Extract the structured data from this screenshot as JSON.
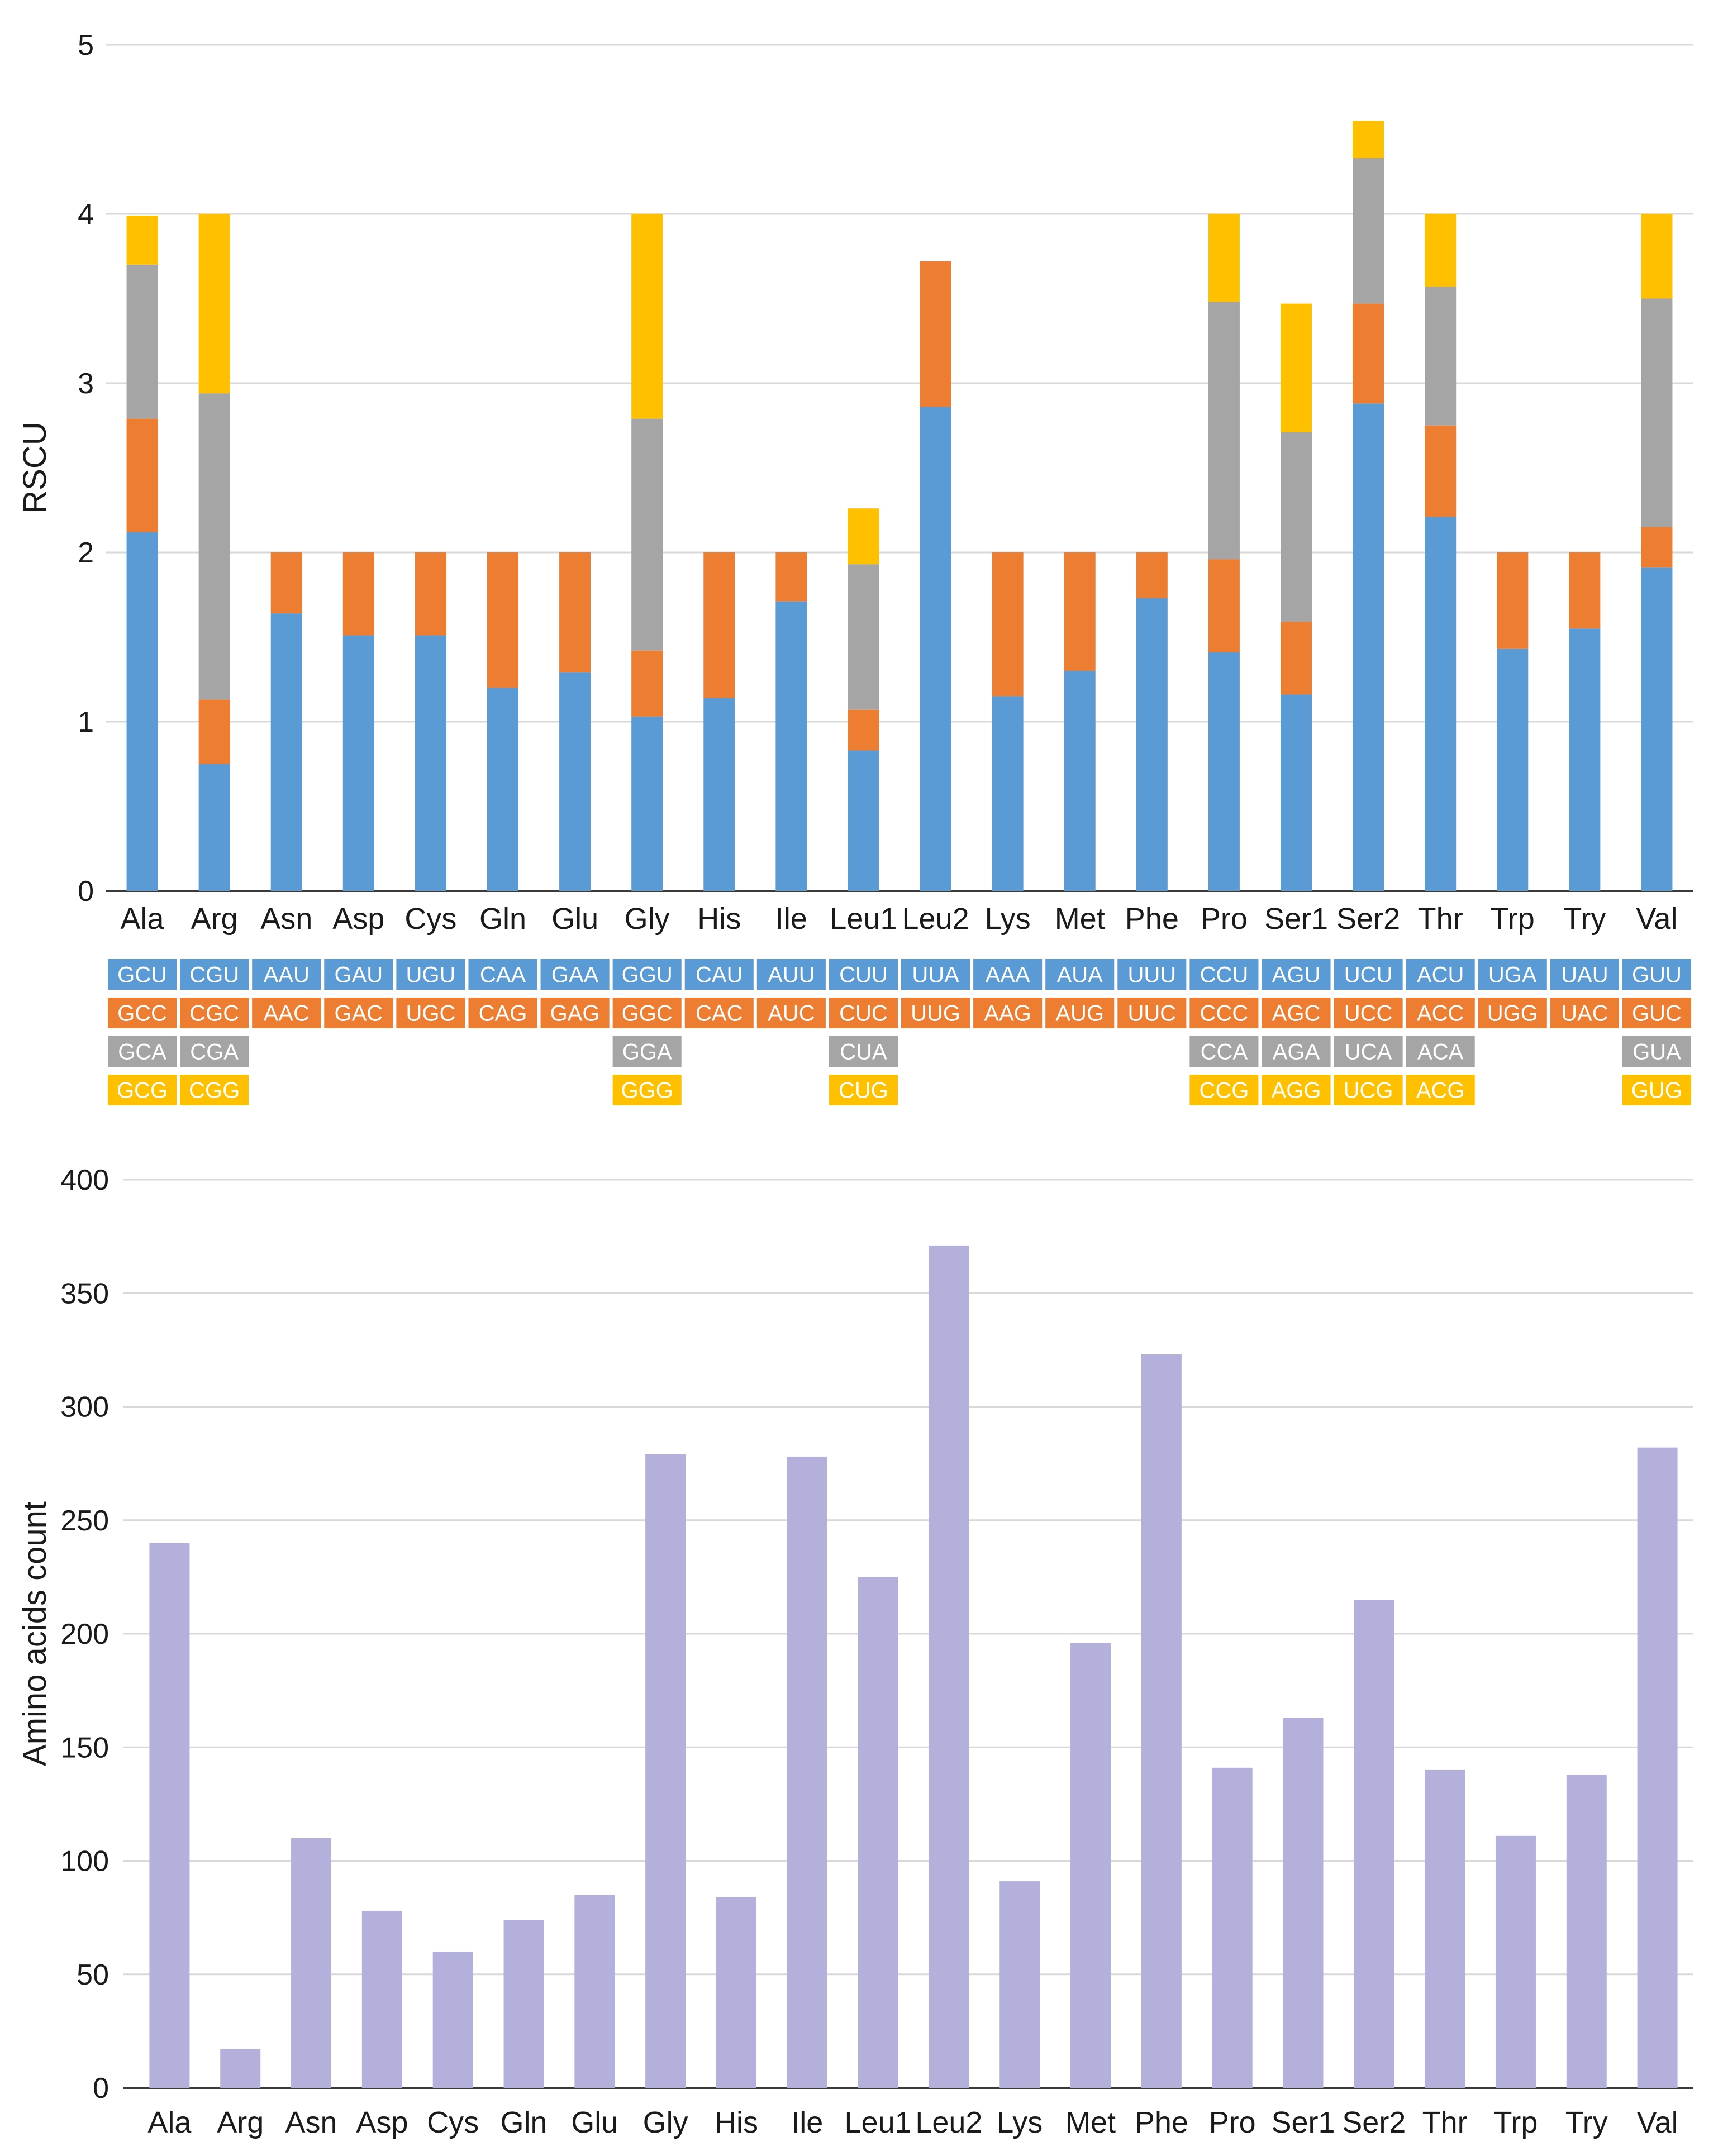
{
  "colors": {
    "codon1": "#5b9bd5",
    "codon2": "#ed7d31",
    "codon3": "#a5a5a5",
    "codon4": "#ffc000",
    "count_bar": "#b4b0dc"
  },
  "chart_data": [
    {
      "type": "bar",
      "stacked": true,
      "title": "",
      "xlabel": "",
      "ylabel": "RSCU",
      "ylim": [
        0,
        5
      ],
      "yticks": [
        "0",
        "1",
        "2",
        "3",
        "4",
        "5"
      ],
      "grid": true,
      "categories": [
        "Ala",
        "Arg",
        "Asn",
        "Asp",
        "Cys",
        "Gln",
        "Glu",
        "Gly",
        "His",
        "Ile",
        "Leu1",
        "Leu2",
        "Lys",
        "Met",
        "Phe",
        "Pro",
        "Ser1",
        "Ser2",
        "Thr",
        "Trp",
        "Try",
        "Val"
      ],
      "series": [
        {
          "name": "codon1",
          "values": [
            2.12,
            0.75,
            1.64,
            1.51,
            1.51,
            1.2,
            1.29,
            1.03,
            1.14,
            1.71,
            0.83,
            2.86,
            1.15,
            1.3,
            1.73,
            1.41,
            1.16,
            2.88,
            2.21,
            1.43,
            1.55,
            1.91
          ]
        },
        {
          "name": "codon2",
          "values": [
            0.67,
            0.38,
            0.36,
            0.49,
            0.49,
            0.8,
            0.71,
            0.39,
            0.86,
            0.29,
            0.24,
            0.86,
            0.85,
            0.7,
            0.27,
            0.55,
            0.43,
            0.59,
            0.54,
            0.57,
            0.45,
            0.24
          ]
        },
        {
          "name": "codon3",
          "values": [
            0.91,
            1.81,
            0,
            0,
            0,
            0,
            0,
            1.37,
            0,
            0,
            0.86,
            0,
            0,
            0,
            0,
            1.52,
            1.12,
            0.86,
            0.82,
            0,
            0,
            1.35
          ]
        },
        {
          "name": "codon4",
          "values": [
            0.29,
            1.06,
            0,
            0,
            0,
            0,
            0,
            1.21,
            0,
            0,
            0.33,
            0,
            0,
            0,
            0,
            0.52,
            0.76,
            0.22,
            0.43,
            0,
            0,
            0.5
          ]
        }
      ],
      "codon_table": [
        [
          "GCU",
          "GCC",
          "GCA",
          "GCG"
        ],
        [
          "CGU",
          "CGC",
          "CGA",
          "CGG"
        ],
        [
          "AAU",
          "AAC"
        ],
        [
          "GAU",
          "GAC"
        ],
        [
          "UGU",
          "UGC"
        ],
        [
          "CAA",
          "CAG"
        ],
        [
          "GAA",
          "GAG"
        ],
        [
          "GGU",
          "GGC",
          "GGA",
          "GGG"
        ],
        [
          "CAU",
          "CAC"
        ],
        [
          "AUU",
          "AUC"
        ],
        [
          "CUU",
          "CUC",
          "CUA",
          "CUG"
        ],
        [
          "UUA",
          "UUG"
        ],
        [
          "AAA",
          "AAG"
        ],
        [
          "AUA",
          "AUG"
        ],
        [
          "UUU",
          "UUC"
        ],
        [
          "CCU",
          "CCC",
          "CCA",
          "CCG"
        ],
        [
          "AGU",
          "AGC",
          "AGA",
          "AGG"
        ],
        [
          "UCU",
          "UCC",
          "UCA",
          "UCG"
        ],
        [
          "ACU",
          "ACC",
          "ACA",
          "ACG"
        ],
        [
          "UGA",
          "UGG"
        ],
        [
          "UAU",
          "UAC"
        ],
        [
          "GUU",
          "GUC",
          "GUA",
          "GUG"
        ]
      ]
    },
    {
      "type": "bar",
      "title": "",
      "xlabel": "",
      "ylabel": "Amino acids count",
      "ylim": [
        0,
        400
      ],
      "yticks": [
        "0",
        "50",
        "100",
        "150",
        "200",
        "250",
        "300",
        "350",
        "400"
      ],
      "grid": true,
      "categories": [
        "Ala",
        "Arg",
        "Asn",
        "Asp",
        "Cys",
        "Gln",
        "Glu",
        "Gly",
        "His",
        "Ile",
        "Leu1",
        "Leu2",
        "Lys",
        "Met",
        "Phe",
        "Pro",
        "Ser1",
        "Ser2",
        "Thr",
        "Trp",
        "Try",
        "Val"
      ],
      "values": [
        240,
        17,
        110,
        78,
        60,
        74,
        85,
        279,
        84,
        278,
        225,
        371,
        91,
        196,
        323,
        141,
        163,
        215,
        140,
        111,
        138,
        282
      ]
    }
  ]
}
